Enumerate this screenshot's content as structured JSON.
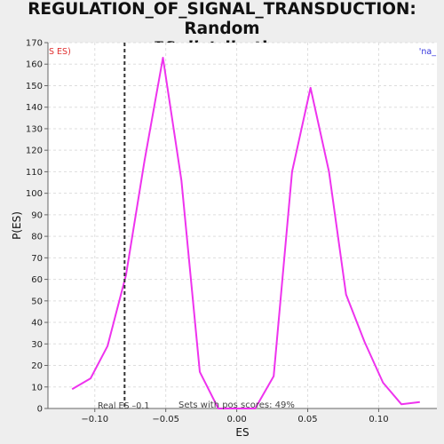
{
  "chart_data": {
    "type": "line",
    "title_line1": "REGULATION_OF_SIGNAL_TRANSDUCTION: Random",
    "title_line2": "ES distribution",
    "xlabel": "ES",
    "ylabel": "P(ES)",
    "xlim": [
      -0.133,
      0.141
    ],
    "ylim": [
      0,
      170
    ],
    "x_ticks": [
      -0.1,
      -0.05,
      0.0,
      0.05,
      0.1
    ],
    "x_tick_labels": [
      "−0.10",
      "−0.05",
      "0.00",
      "0.05",
      "0.10"
    ],
    "y_ticks": [
      0,
      10,
      20,
      30,
      40,
      50,
      60,
      70,
      80,
      90,
      100,
      110,
      120,
      130,
      140,
      150,
      160,
      170
    ],
    "grid": true,
    "series": [
      {
        "color": "#ee33ee",
        "x": [
          -0.116,
          -0.103,
          -0.091,
          -0.078,
          -0.065,
          -0.052,
          -0.039,
          -0.026,
          -0.013,
          0.0,
          0.013,
          0.026,
          0.039,
          0.052,
          0.065,
          0.077,
          0.09,
          0.103,
          0.116,
          0.129
        ],
        "y": [
          9,
          14,
          29,
          62,
          115,
          163,
          106,
          17,
          0,
          0,
          0,
          15,
          110,
          149,
          110,
          53,
          31,
          12,
          2,
          3
        ]
      }
    ],
    "real_es": -0.079,
    "real_es_label": "Real ES –0.1",
    "pos_scores_label": "Sets with pos scores: 49%",
    "legend_left": "S ES)",
    "legend_right": "'na_"
  }
}
